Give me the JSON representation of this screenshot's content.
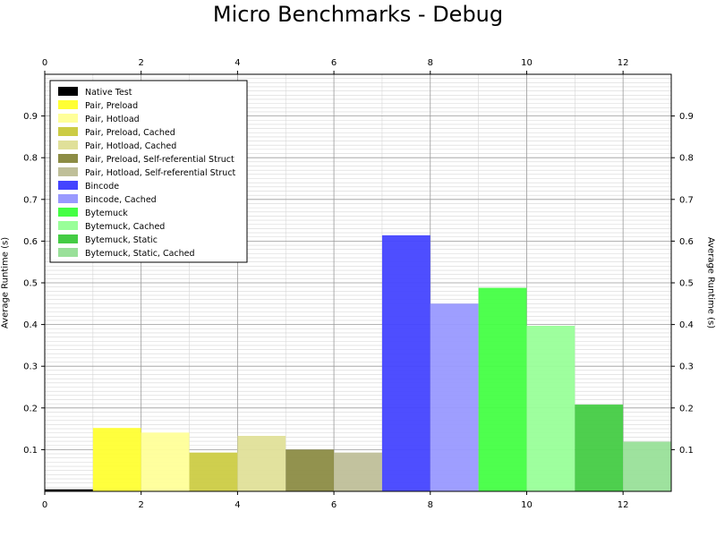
{
  "chart_data": {
    "type": "bar",
    "title": "Micro Benchmarks - Debug",
    "xlabel": "",
    "ylabel": "Average Runtime (s)",
    "xlim": [
      0,
      13
    ],
    "ylim": [
      0,
      1
    ],
    "x_ticks": [
      "0",
      "2",
      "4",
      "6",
      "8",
      "10",
      "12"
    ],
    "y_ticks": [
      "0.1",
      "0.2",
      "0.3",
      "0.4",
      "0.5",
      "0.6",
      "0.7",
      "0.8",
      "0.9"
    ],
    "grid": true,
    "minor_grid": true,
    "legend_position": "top-left",
    "series": [
      {
        "name": "Native Test",
        "x": 0,
        "value": 0.005,
        "color": "#000000"
      },
      {
        "name": "Pair, Preload",
        "x": 1,
        "value": 0.152,
        "color": "#ffff33"
      },
      {
        "name": "Pair, Hotload",
        "x": 2,
        "value": 0.141,
        "color": "#ffff99"
      },
      {
        "name": "Pair, Preload, Cached",
        "x": 3,
        "value": 0.093,
        "color": "#cccc44"
      },
      {
        "name": "Pair, Hotload, Cached",
        "x": 4,
        "value": 0.133,
        "color": "#e0e099"
      },
      {
        "name": "Pair, Preload, Self-referential Struct",
        "x": 5,
        "value": 0.1,
        "color": "#8c8c44"
      },
      {
        "name": "Pair, Hotload, Self-referential Struct",
        "x": 6,
        "value": 0.093,
        "color": "#bfbf99"
      },
      {
        "name": "Bincode",
        "x": 7,
        "value": 0.614,
        "color": "#4444ff"
      },
      {
        "name": "Bincode, Cached",
        "x": 8,
        "value": 0.45,
        "color": "#9999ff"
      },
      {
        "name": "Bytemuck",
        "x": 9,
        "value": 0.488,
        "color": "#44ff44"
      },
      {
        "name": "Bytemuck, Cached",
        "x": 10,
        "value": 0.397,
        "color": "#99ff99"
      },
      {
        "name": "Bytemuck, Static",
        "x": 11,
        "value": 0.208,
        "color": "#44cc44"
      },
      {
        "name": "Bytemuck, Static, Cached",
        "x": 12,
        "value": 0.119,
        "color": "#99e099"
      }
    ]
  }
}
